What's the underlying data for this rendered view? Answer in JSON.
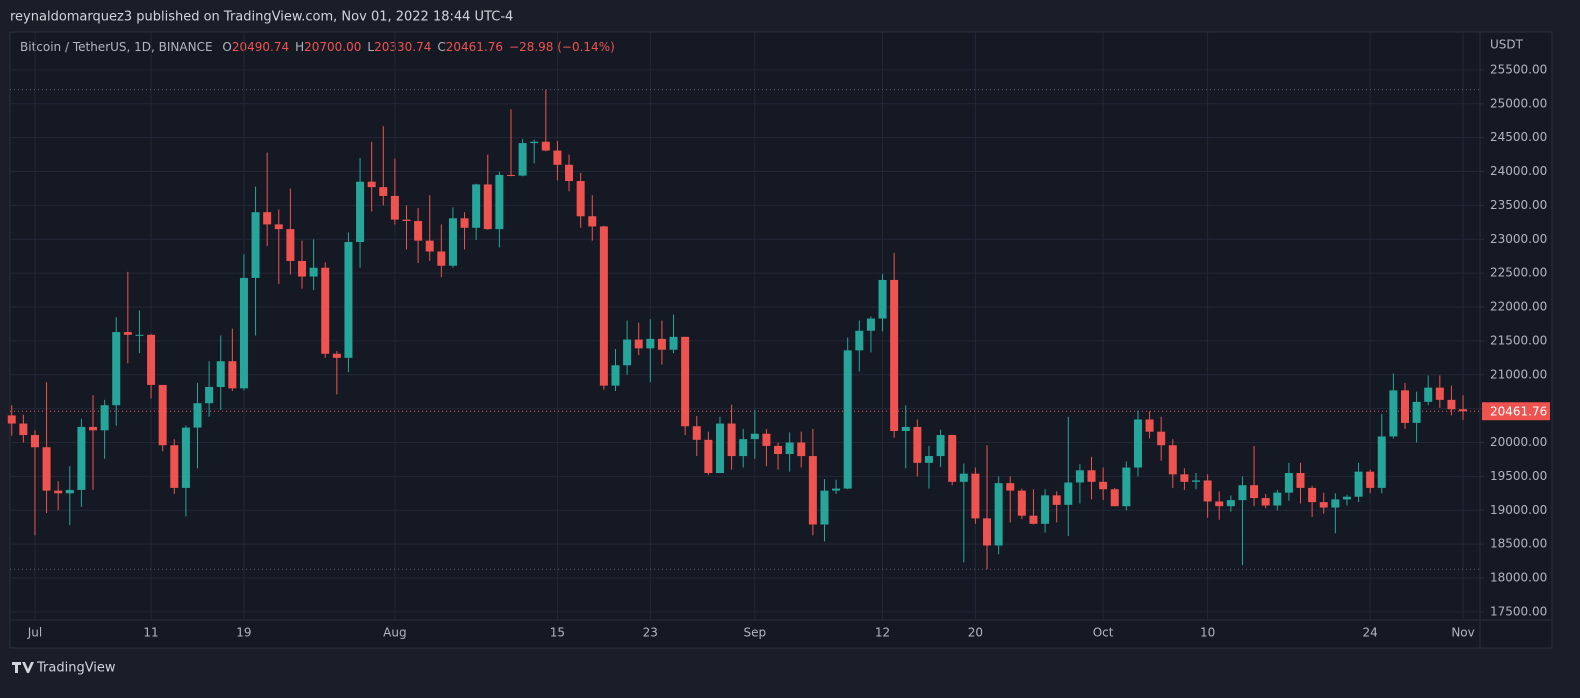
{
  "header": {
    "text": "reynaldomarquez3 published on TradingView.com, Nov 01, 2022 18:44 UTC-4"
  },
  "chart_data": {
    "type": "candlestick",
    "symbol": "Bitcoin / TetherUS, 1D, BINANCE",
    "ohlc_labels": [
      "O",
      "H",
      "L",
      "C"
    ],
    "legend_values": [
      {
        "value": 20490.74,
        "label": "20490.74"
      },
      {
        "value": 20700,
        "label": "20700.00"
      },
      {
        "value": 20330.74,
        "label": "20330.74"
      },
      {
        "value": 20461.76,
        "label": "20461.76"
      }
    ],
    "change": "−28.98 (−0.14%)",
    "axis_unit": "USDT",
    "up_color": "#26a69a",
    "down_color": "#ef5350",
    "grid": true,
    "open": [
      20400,
      20280,
      20110,
      19930,
      19290,
      19250,
      19300,
      20230,
      20180,
      20550,
      21630,
      21590,
      21590,
      20850,
      19960,
      19330,
      20220,
      20580,
      20820,
      21200,
      20800,
      22430,
      23400,
      23220,
      23150,
      22680,
      22450,
      22580,
      21310,
      21250,
      22960,
      23850,
      23770,
      23640,
      23290,
      23270,
      22980,
      22820,
      22610,
      23310,
      23170,
      23810,
      23150,
      23950,
      23940,
      24420,
      24440,
      24310,
      24100,
      23860,
      23340,
      23190,
      20840,
      21140,
      21520,
      21390,
      21530,
      21370,
      21560,
      20240,
      20040,
      19550,
      20280,
      19800,
      20050,
      20130,
      19950,
      19830,
      20000,
      19800,
      18790,
      19290,
      19320,
      21360,
      21650,
      21830,
      22400,
      20170,
      20230,
      19700,
      19800,
      20110,
      19420,
      19540,
      18880,
      18480,
      19400,
      19290,
      18920,
      18800,
      19220,
      19080,
      19410,
      19590,
      19420,
      19310,
      19060,
      19630,
      20340,
      20160,
      19960,
      19530,
      19420,
      19440,
      19130,
      19060,
      19150,
      19370,
      19180,
      19070,
      19260,
      19550,
      19330,
      19120,
      19040,
      19160,
      19200,
      19570,
      19330,
      20090,
      20770,
      20290,
      20600,
      20810,
      20630,
      20490.74
    ],
    "high": [
      20550,
      20410,
      20180,
      20890,
      19430,
      19650,
      20350,
      20700,
      20630,
      21850,
      22520,
      21950,
      21600,
      20850,
      20050,
      20250,
      20880,
      21200,
      21580,
      21680,
      22780,
      23780,
      24280,
      23440,
      23750,
      22980,
      23000,
      22660,
      21350,
      23100,
      24200,
      24440,
      24670,
      24190,
      23500,
      23460,
      23650,
      23220,
      23470,
      23400,
      23820,
      24250,
      24000,
      24920,
      24480,
      24470,
      25210,
      24450,
      24250,
      23980,
      23650,
      23200,
      21380,
      21800,
      21770,
      21820,
      21800,
      21890,
      21560,
      20390,
      20160,
      20380,
      20560,
      20200,
      20480,
      20200,
      20000,
      20150,
      20160,
      20200,
      19460,
      19450,
      21550,
      21800,
      21860,
      22490,
      22800,
      20550,
      20340,
      19950,
      20190,
      20110,
      19690,
      19630,
      19960,
      19500,
      19500,
      19320,
      19310,
      19310,
      19280,
      20380,
      19680,
      19790,
      19630,
      19330,
      19720,
      20470,
      20460,
      20380,
      20050,
      19620,
      19550,
      19530,
      19280,
      19220,
      19500,
      19950,
      19240,
      19300,
      19700,
      19700,
      19360,
      19260,
      19250,
      19230,
      19700,
      19600,
      20420,
      21020,
      20880,
      20750,
      20990,
      20990,
      20840,
      20700
    ],
    "low": [
      20100,
      20000,
      18630,
      18960,
      19000,
      18780,
      19050,
      19300,
      19760,
      20250,
      21170,
      21320,
      20650,
      19870,
      19240,
      18910,
      19620,
      20380,
      20480,
      20760,
      20770,
      21580,
      22900,
      22340,
      22480,
      22270,
      22250,
      21250,
      20710,
      21040,
      22580,
      23410,
      23500,
      23220,
      22850,
      22650,
      22680,
      22440,
      22580,
      22850,
      22990,
      23140,
      22880,
      23930,
      23930,
      24120,
      24300,
      23870,
      23710,
      23170,
      22980,
      20780,
      20760,
      21000,
      21290,
      20890,
      21150,
      21320,
      20110,
      19800,
      19520,
      19550,
      19600,
      19630,
      19760,
      19650,
      19600,
      19570,
      19630,
      18630,
      18540,
      19240,
      19310,
      21050,
      21330,
      21640,
      20070,
      19620,
      19500,
      19320,
      19640,
      19370,
      18230,
      18800,
      18130,
      18350,
      18820,
      18870,
      18790,
      18670,
      18820,
      18620,
      19100,
      19160,
      19150,
      19060,
      19000,
      19500,
      20060,
      19730,
      19330,
      19300,
      19310,
      18890,
      18860,
      18980,
      18190,
      19060,
      19030,
      19000,
      19140,
      19100,
      18900,
      18950,
      18660,
      19070,
      19120,
      19250,
      19250,
      20060,
      20200,
      20000,
      20550,
      20510,
      20400,
      20330.74
    ],
    "close": [
      20280,
      20110,
      19930,
      19290,
      19250,
      19300,
      20230,
      20180,
      20550,
      21630,
      21590,
      21590,
      20850,
      19960,
      19330,
      20220,
      20580,
      20820,
      21200,
      20800,
      22430,
      23400,
      23220,
      23150,
      22680,
      22450,
      22580,
      21310,
      21250,
      22960,
      23850,
      23770,
      23640,
      23290,
      23270,
      22980,
      22820,
      22610,
      23310,
      23170,
      23810,
      23150,
      23950,
      23940,
      24420,
      24440,
      24310,
      24100,
      23860,
      23340,
      23190,
      20840,
      21140,
      21520,
      21390,
      21530,
      21370,
      21560,
      20240,
      20040,
      19550,
      20280,
      19800,
      20050,
      20130,
      19950,
      19830,
      20000,
      19800,
      18790,
      19290,
      19320,
      21360,
      21650,
      21830,
      22400,
      20170,
      20230,
      19700,
      19800,
      20110,
      19420,
      19540,
      18880,
      18480,
      19400,
      19290,
      18920,
      18800,
      19220,
      19080,
      19410,
      19590,
      19420,
      19310,
      19060,
      19630,
      20340,
      20160,
      19960,
      19530,
      19420,
      19440,
      19130,
      19060,
      19150,
      19370,
      19180,
      19070,
      19260,
      19550,
      19330,
      19120,
      19040,
      19160,
      19200,
      19570,
      19330,
      20090,
      20770,
      20290,
      20600,
      20810,
      20630,
      20490.74,
      20461.76
    ],
    "xlim": [
      -0.15,
      126.46
    ],
    "xticks": [
      {
        "value": 2,
        "label": "Jul"
      },
      {
        "value": 12,
        "label": "11"
      },
      {
        "value": 20,
        "label": "19"
      },
      {
        "value": 33,
        "label": "Aug"
      },
      {
        "value": 47,
        "label": "15"
      },
      {
        "value": 55,
        "label": "23"
      },
      {
        "value": 64,
        "label": "Sep"
      },
      {
        "value": 75,
        "label": "12"
      },
      {
        "value": 83,
        "label": "20"
      },
      {
        "value": 94,
        "label": "Oct"
      },
      {
        "value": 103,
        "label": "10"
      },
      {
        "value": 117,
        "label": "24"
      },
      {
        "value": 125,
        "label": "Nov"
      }
    ],
    "ylim": [
      17380,
      26060
    ],
    "yticks": [
      {
        "value": 17500,
        "label": "17500.00"
      },
      {
        "value": 18000,
        "label": "18000.00"
      },
      {
        "value": 18500,
        "label": "18500.00"
      },
      {
        "value": 19000,
        "label": "19000.00"
      },
      {
        "value": 19500,
        "label": "19500.00"
      },
      {
        "value": 20000,
        "label": "20000.00"
      },
      {
        "value": 20500,
        "label": "20500.00"
      },
      {
        "value": 21000,
        "label": "21000.00"
      },
      {
        "value": 21500,
        "label": "21500.00"
      },
      {
        "value": 22000,
        "label": "22000.00"
      },
      {
        "value": 22500,
        "label": "22500.00"
      },
      {
        "value": 23000,
        "label": "23000.00"
      },
      {
        "value": 23500,
        "label": "23500.00"
      },
      {
        "value": 24000,
        "label": "24000.00"
      },
      {
        "value": 24500,
        "label": "24500.00"
      },
      {
        "value": 25000,
        "label": "25000.00"
      },
      {
        "value": 25500,
        "label": "25500.00"
      }
    ]
  },
  "footer": {
    "brand": "TradingView"
  }
}
